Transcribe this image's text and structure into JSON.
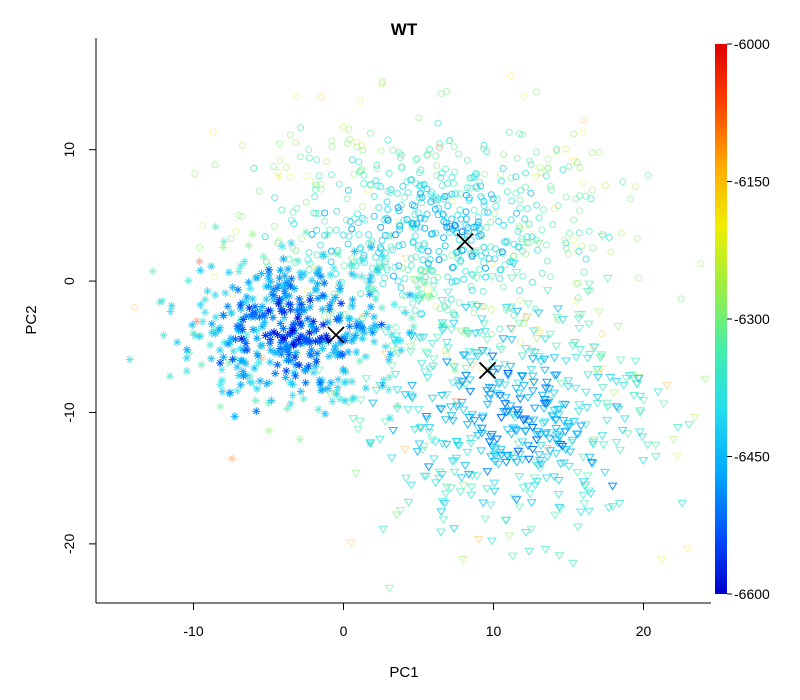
{
  "chart_data": {
    "type": "scatter",
    "title": "WT",
    "xlabel": "PC1",
    "ylabel": "PC2",
    "xlim": [
      -16.5,
      24.5
    ],
    "ylim": [
      -24.5,
      18.5
    ],
    "xticks": [
      "-10",
      "0",
      "10",
      "20"
    ],
    "xtick_values": [
      -10,
      0,
      10,
      20
    ],
    "yticks": [
      "-20",
      "-10",
      "0",
      "10"
    ],
    "ytick_values": [
      -20,
      -10,
      0,
      10
    ],
    "colorbar": {
      "min": -6600,
      "max": -6000,
      "ticks": [
        "-6000",
        "-6150",
        "-6300",
        "-6450",
        "-6600"
      ],
      "tick_values": [
        -6000,
        -6150,
        -6300,
        -6450,
        -6600
      ],
      "colors": [
        "#0000cc",
        "#0055ff",
        "#00aaff",
        "#22ddee",
        "#44eeaa",
        "#99ee44",
        "#eeee00",
        "#ffaa00",
        "#ff4400",
        "#dd0000"
      ]
    },
    "clusters": [
      {
        "marker": "asterisk",
        "center": [
          -3.5,
          -3.5
        ],
        "spread": [
          3.8,
          3.0
        ],
        "count": 480,
        "energy_mean": -6540
      },
      {
        "marker": "circle",
        "center": [
          6,
          4
        ],
        "spread": [
          6.0,
          4.0
        ],
        "count": 650,
        "energy_mean": -6440
      },
      {
        "marker": "triangle-down",
        "center": [
          11,
          -10
        ],
        "spread": [
          5.0,
          5.0
        ],
        "count": 550,
        "energy_mean": -6480
      }
    ],
    "centroids": [
      {
        "x": -0.5,
        "y": -4.1
      },
      {
        "x": 8.1,
        "y": 3.0
      },
      {
        "x": 9.6,
        "y": -6.8
      }
    ]
  }
}
